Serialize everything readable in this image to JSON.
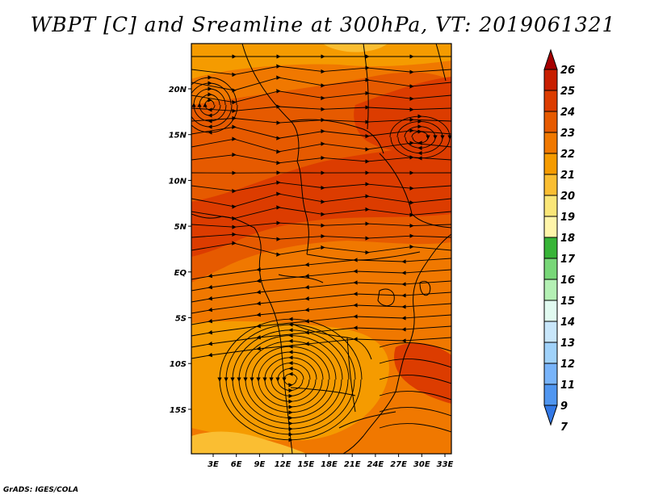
{
  "title": "WBPT [C] and Sreamline at 300hPa, VT: 2019061321",
  "credit": "GrADS: IGES/COLA",
  "map": {
    "lon_labels": [
      "3E",
      "6E",
      "9E",
      "12E",
      "15E",
      "18E",
      "21E",
      "24E",
      "27E",
      "30E",
      "33E"
    ],
    "lat_labels": [
      "20N",
      "15N",
      "10N",
      "5N",
      "EQ",
      "5S",
      "10S",
      "15S"
    ]
  },
  "colorbar": {
    "levels": [
      "26",
      "25",
      "24",
      "23",
      "22",
      "21",
      "20",
      "19",
      "18",
      "17",
      "16",
      "15",
      "14",
      "13",
      "12",
      "11",
      "9",
      "7"
    ],
    "colors": [
      "#a50000",
      "#c81e00",
      "#dc3c00",
      "#e65a00",
      "#f07800",
      "#f59b00",
      "#fabe32",
      "#fae678",
      "#fff5aa",
      "#37b437",
      "#78d778",
      "#b4f0b4",
      "#e1faf0",
      "#c8e6fa",
      "#a0d2fa",
      "#78b4fa",
      "#5096f0",
      "#3278e6"
    ]
  },
  "map_colors": {
    "sea": "#f07800",
    "warm": "#e65a00",
    "hot": "#dc3c00",
    "cool": "#f59b00",
    "coolest": "#fabe32",
    "line": "#000000"
  }
}
